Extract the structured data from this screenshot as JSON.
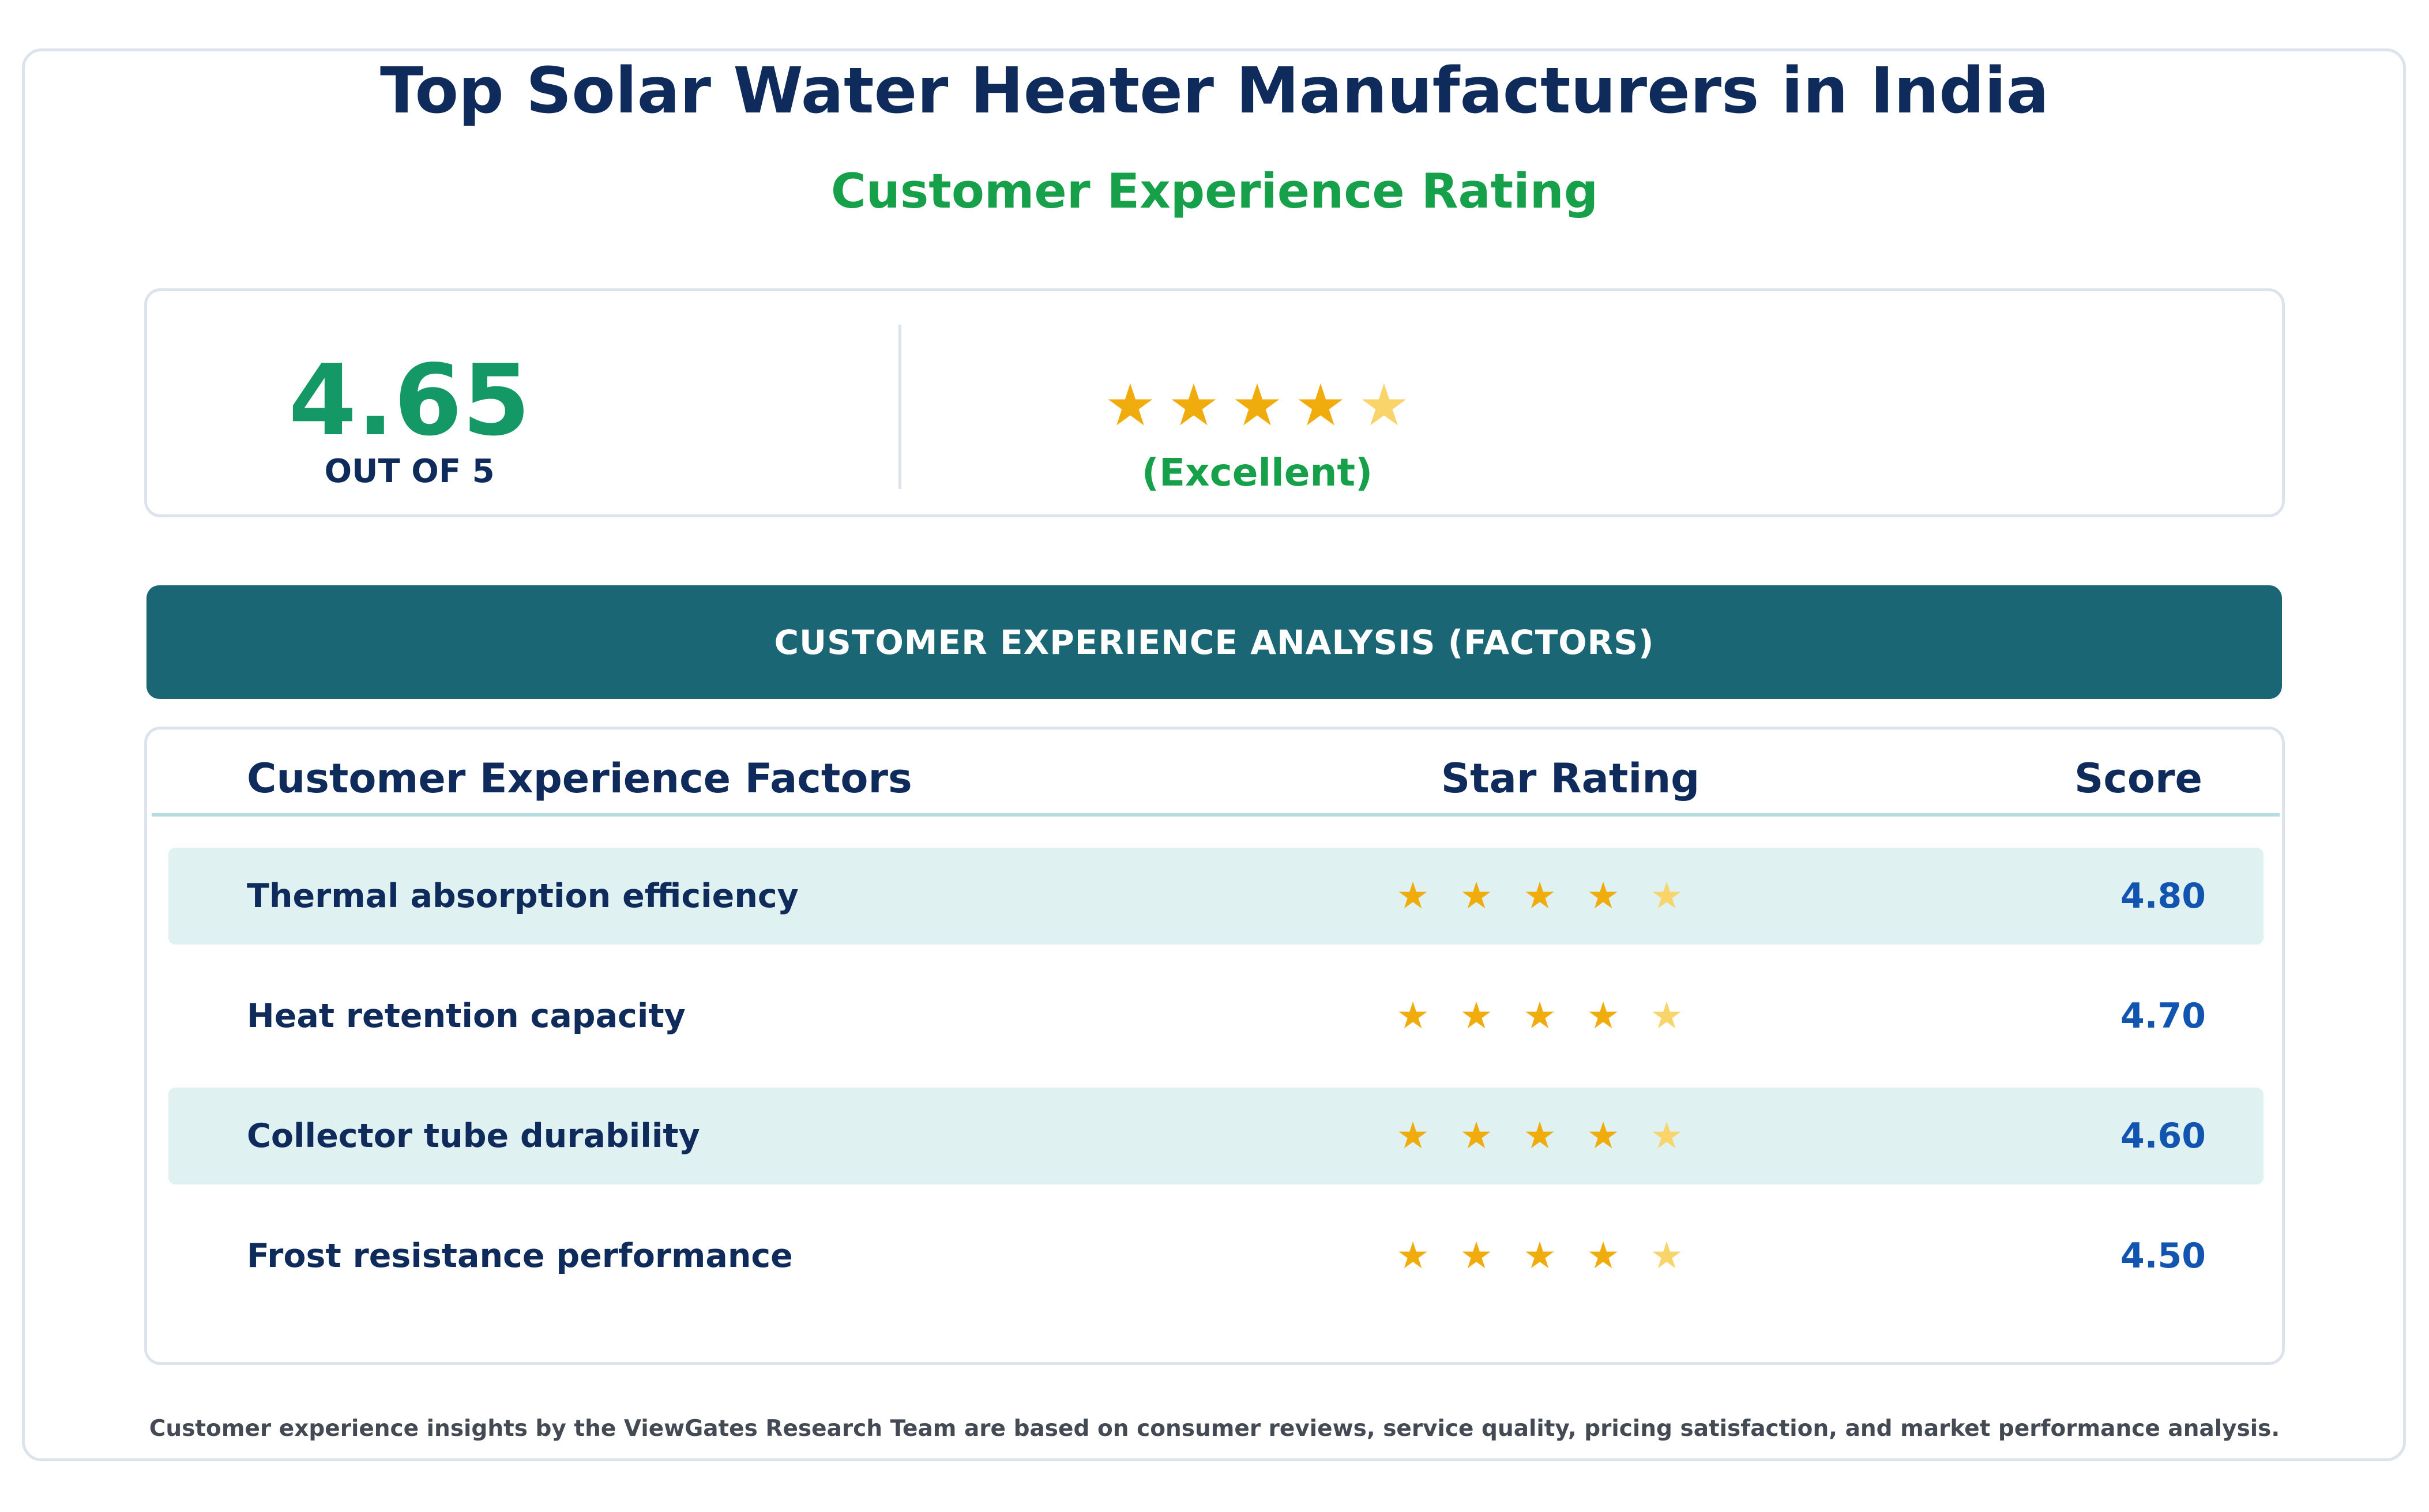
{
  "header": {
    "title": "Top Solar Water Heater Manufacturers in India",
    "subtitle": "Customer Experience Rating"
  },
  "summary": {
    "score": "4.65",
    "out_of": "OUT OF 5",
    "rating_value": 4.65,
    "rating_max": 5,
    "verdict": "(Excellent)"
  },
  "banner": {
    "label": "CUSTOMER EXPERIENCE ANALYSIS (FACTORS)"
  },
  "table": {
    "headers": {
      "factor": "Customer Experience Factors",
      "stars": "Star Rating",
      "score": "Score"
    },
    "rows": [
      {
        "factor": "Thermal absorption efficiency",
        "score": "4.80",
        "rating": 4.8
      },
      {
        "factor": "Heat retention capacity",
        "score": "4.70",
        "rating": 4.7
      },
      {
        "factor": "Collector tube durability",
        "score": "4.60",
        "rating": 4.6
      },
      {
        "factor": "Frost resistance performance",
        "score": "4.50",
        "rating": 4.5
      }
    ]
  },
  "footnote": "Customer experience insights by the ViewGates Research Team are based on consumer reviews, service quality, pricing satisfaction, and market performance analysis.",
  "colors": {
    "title": "#0f2b5b",
    "accent_green": "#16a049",
    "score_green": "#149866",
    "banner": "#1b6675",
    "star_full": "#f0ac0c",
    "star_partial": "#f8d46a",
    "score_blue": "#1155b0",
    "row_shade": "#e0f1f1"
  },
  "icons": {
    "star": "star-icon"
  }
}
